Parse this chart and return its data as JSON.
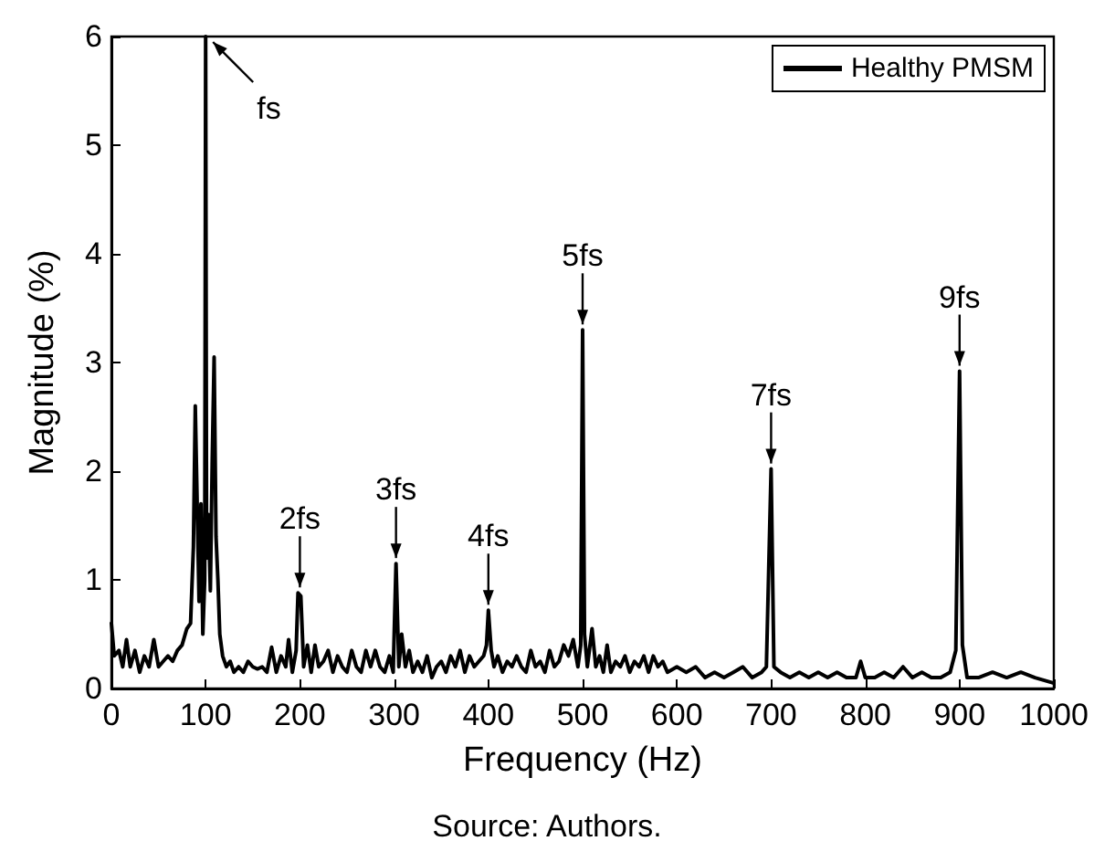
{
  "chart_data": {
    "type": "line",
    "xlabel": "Frequency (Hz)",
    "ylabel": "Magnitude (%)",
    "xlim": [
      0,
      1000
    ],
    "xticks": [
      0,
      100,
      200,
      300,
      400,
      500,
      600,
      700,
      800,
      900,
      1000
    ],
    "ylim": [
      0,
      6
    ],
    "yticks": [
      0,
      1,
      2,
      3,
      4,
      5,
      6
    ],
    "grid": false,
    "legend": "top right",
    "marker": "none",
    "line_style": "solid",
    "x": [
      0,
      3,
      8,
      12,
      16,
      20,
      25,
      30,
      35,
      40,
      45,
      50,
      55,
      60,
      65,
      70,
      75,
      80,
      84,
      87,
      89,
      91,
      93,
      95,
      97,
      99,
      100,
      101,
      103,
      105,
      107,
      109,
      111,
      113,
      115,
      118,
      122,
      126,
      130,
      135,
      140,
      145,
      150,
      155,
      160,
      165,
      170,
      175,
      180,
      185,
      188,
      192,
      196,
      198,
      201,
      204,
      208,
      212,
      216,
      220,
      225,
      230,
      235,
      240,
      245,
      250,
      255,
      260,
      265,
      270,
      275,
      280,
      285,
      290,
      295,
      299,
      302,
      305,
      308,
      312,
      316,
      320,
      325,
      330,
      335,
      340,
      345,
      350,
      355,
      360,
      365,
      370,
      375,
      380,
      385,
      390,
      395,
      398,
      400,
      403,
      406,
      410,
      415,
      420,
      425,
      430,
      435,
      440,
      445,
      450,
      455,
      460,
      465,
      470,
      475,
      480,
      485,
      490,
      495,
      498,
      500,
      502,
      505,
      510,
      514,
      518,
      522,
      526,
      530,
      535,
      540,
      545,
      550,
      555,
      560,
      565,
      570,
      575,
      580,
      585,
      590,
      600,
      610,
      620,
      630,
      640,
      650,
      660,
      670,
      680,
      690,
      695,
      700,
      703,
      710,
      720,
      730,
      740,
      750,
      760,
      770,
      780,
      790,
      795,
      800,
      810,
      820,
      830,
      840,
      850,
      860,
      870,
      880,
      890,
      896,
      900,
      903,
      908,
      920,
      935,
      950,
      965,
      980,
      1000
    ],
    "series": [
      {
        "name": "Healthy PMSM",
        "color": "#000000",
        "values": [
          0.6,
          0.3,
          0.35,
          0.2,
          0.45,
          0.2,
          0.35,
          0.15,
          0.3,
          0.2,
          0.45,
          0.2,
          0.25,
          0.3,
          0.25,
          0.35,
          0.4,
          0.55,
          0.6,
          1.3,
          2.6,
          1.7,
          0.8,
          1.7,
          0.5,
          1.0,
          6,
          1.2,
          1.6,
          0.9,
          2.1,
          3.05,
          1.4,
          1.0,
          0.5,
          0.3,
          0.2,
          0.25,
          0.15,
          0.2,
          0.15,
          0.25,
          0.2,
          0.18,
          0.2,
          0.15,
          0.38,
          0.15,
          0.3,
          0.2,
          0.45,
          0.15,
          0.35,
          0.88,
          0.85,
          0.2,
          0.4,
          0.15,
          0.4,
          0.2,
          0.25,
          0.35,
          0.15,
          0.3,
          0.2,
          0.15,
          0.35,
          0.2,
          0.15,
          0.35,
          0.2,
          0.35,
          0.2,
          0.15,
          0.3,
          0.15,
          1.15,
          0.2,
          0.5,
          0.2,
          0.35,
          0.15,
          0.25,
          0.15,
          0.3,
          0.1,
          0.2,
          0.25,
          0.15,
          0.3,
          0.2,
          0.35,
          0.15,
          0.3,
          0.2,
          0.25,
          0.3,
          0.4,
          0.72,
          0.35,
          0.2,
          0.3,
          0.15,
          0.25,
          0.2,
          0.3,
          0.2,
          0.15,
          0.35,
          0.2,
          0.25,
          0.15,
          0.35,
          0.2,
          0.25,
          0.4,
          0.3,
          0.45,
          0.2,
          0.4,
          3.3,
          0.5,
          0.2,
          0.55,
          0.2,
          0.3,
          0.15,
          0.4,
          0.15,
          0.25,
          0.2,
          0.3,
          0.15,
          0.25,
          0.2,
          0.3,
          0.15,
          0.3,
          0.2,
          0.25,
          0.15,
          0.2,
          0.15,
          0.2,
          0.1,
          0.15,
          0.1,
          0.15,
          0.2,
          0.1,
          0.15,
          0.2,
          2.02,
          0.2,
          0.15,
          0.1,
          0.15,
          0.1,
          0.15,
          0.1,
          0.15,
          0.1,
          0.1,
          0.25,
          0.1,
          0.1,
          0.15,
          0.1,
          0.2,
          0.1,
          0.15,
          0.1,
          0.1,
          0.15,
          0.35,
          2.92,
          0.4,
          0.1,
          0.1,
          0.15,
          0.1,
          0.15,
          0.1,
          0.05
        ]
      }
    ],
    "annotations": [
      {
        "text": "fs",
        "x": 100,
        "y": 6
      },
      {
        "text": "2fs",
        "x": 200,
        "y": 0.88
      },
      {
        "text": "3fs",
        "x": 302,
        "y": 1.15
      },
      {
        "text": "4fs",
        "x": 400,
        "y": 0.72
      },
      {
        "text": "5fs",
        "x": 500,
        "y": 3.3
      },
      {
        "text": "7fs",
        "x": 700,
        "y": 2.02
      },
      {
        "text": "9fs",
        "x": 900,
        "y": 2.92
      },
      "Source: Authors."
    ]
  }
}
